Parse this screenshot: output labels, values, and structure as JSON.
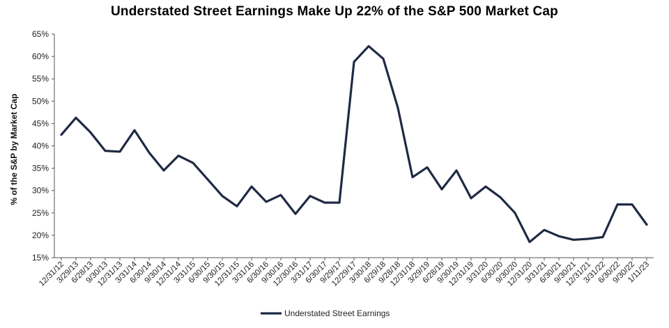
{
  "chart_data": {
    "type": "line",
    "title": "Understated Street Earnings Make Up 22% of the S&P 500 Market Cap",
    "xlabel": "",
    "ylabel": "% of the S&P by Market Cap",
    "ylim": [
      15,
      65
    ],
    "yticks": [
      "15%",
      "20%",
      "25%",
      "30%",
      "35%",
      "40%",
      "45%",
      "50%",
      "55%",
      "60%",
      "65%"
    ],
    "grid": false,
    "legend_position": "bottom",
    "series_color": "#1f2a44",
    "x": [
      "12/31/12",
      "3/29/13",
      "6/28/13",
      "9/30/13",
      "12/31/13",
      "3/31/14",
      "6/30/14",
      "9/30/14",
      "12/31/14",
      "3/31/15",
      "6/30/15",
      "9/30/15",
      "12/31/15",
      "3/31/16",
      "6/30/16",
      "9/30/16",
      "12/30/16",
      "3/31/17",
      "6/30/17",
      "9/29/17",
      "12/29/17",
      "3/30/18",
      "6/29/18",
      "9/28/18",
      "12/31/18",
      "3/29/19",
      "6/28/19",
      "9/30/19",
      "12/31/19",
      "3/31/20",
      "6/30/20",
      "9/30/20",
      "12/31/20",
      "3/31/21",
      "6/30/21",
      "9/30/21",
      "12/31/21",
      "3/31/22",
      "6/30/22",
      "9/30/22",
      "1/11/23"
    ],
    "series": [
      {
        "name": "Understated Street Earnings",
        "values": [
          42.5,
          46.3,
          43.0,
          38.9,
          38.7,
          43.5,
          38.5,
          34.5,
          37.8,
          36.2,
          32.5,
          28.8,
          26.5,
          30.9,
          27.5,
          29.0,
          24.8,
          28.8,
          27.3,
          27.3,
          58.8,
          62.3,
          59.5,
          48.5,
          33.0,
          35.2,
          30.3,
          34.5,
          28.3,
          30.9,
          28.5,
          25.0,
          18.5,
          21.2,
          19.8,
          19.0,
          19.2,
          19.6,
          26.9,
          26.9,
          22.4
        ]
      }
    ]
  }
}
